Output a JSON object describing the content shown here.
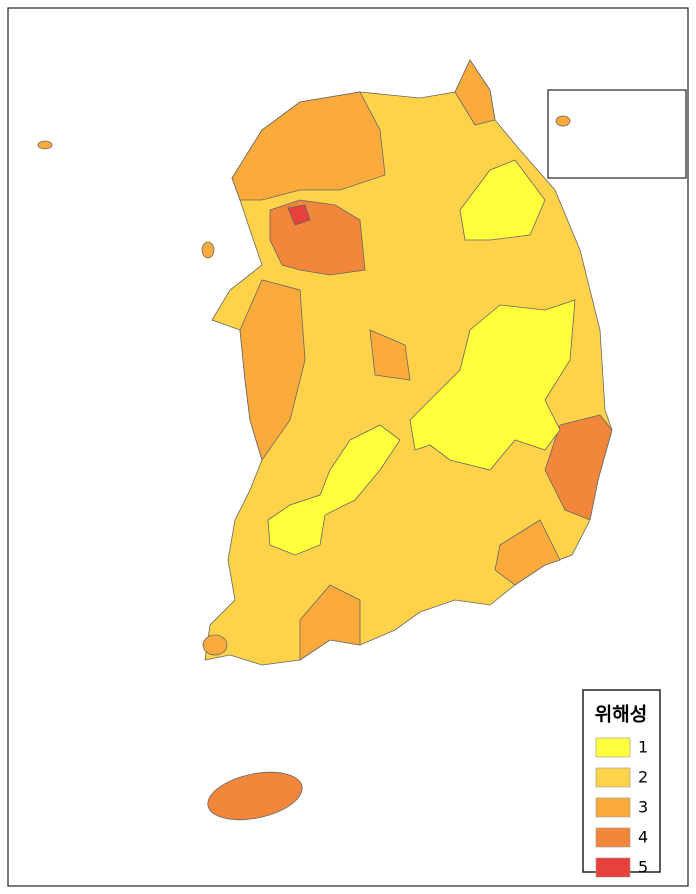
{
  "legend": {
    "title": "위해성",
    "items": [
      {
        "label": "1",
        "color": "#ffff3c"
      },
      {
        "label": "2",
        "color": "#fed34a"
      },
      {
        "label": "3",
        "color": "#fbab3c"
      },
      {
        "label": "4",
        "color": "#f2873c"
      },
      {
        "label": "5",
        "color": "#e8403a"
      }
    ]
  }
}
